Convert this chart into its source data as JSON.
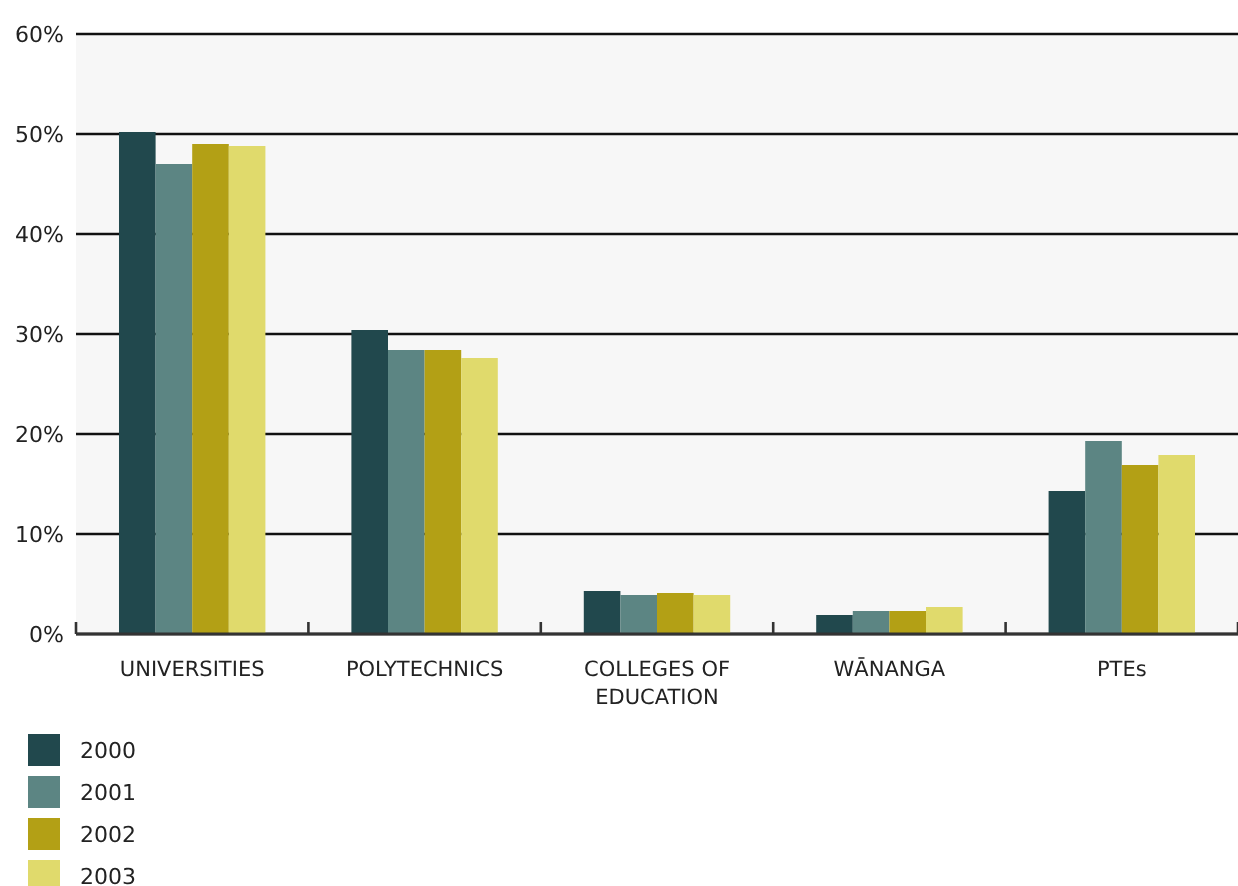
{
  "chart_data": {
    "type": "bar",
    "categories": [
      "UNIVERSITIES",
      "POLYTECHNICS",
      "COLLEGES OF EDUCATION",
      "WĀNANGA",
      "PTEs"
    ],
    "series": [
      {
        "name": "2000",
        "color": "#21484d",
        "values": [
          50.2,
          30.4,
          4.3,
          1.9,
          14.3
        ]
      },
      {
        "name": "2001",
        "color": "#5c8583",
        "values": [
          47,
          28.4,
          3.9,
          2.3,
          19.3
        ]
      },
      {
        "name": "2002",
        "color": "#b3a015",
        "values": [
          49,
          28.4,
          4.1,
          2.3,
          16.9
        ]
      },
      {
        "name": "2003",
        "color": "#e0da6c",
        "values": [
          48.8,
          27.6,
          3.9,
          2.7,
          17.9
        ]
      }
    ],
    "ylim": [
      0,
      60
    ],
    "yticks": [
      {
        "value": 0,
        "label": "0%"
      },
      {
        "value": 10,
        "label": "10%"
      },
      {
        "value": 20,
        "label": "20%"
      },
      {
        "value": 30,
        "label": "30%"
      },
      {
        "value": 40,
        "label": "40%"
      },
      {
        "value": 50,
        "label": "50%"
      },
      {
        "value": 60,
        "label": "60%"
      }
    ],
    "grid": "y",
    "legend": "bottom left"
  }
}
